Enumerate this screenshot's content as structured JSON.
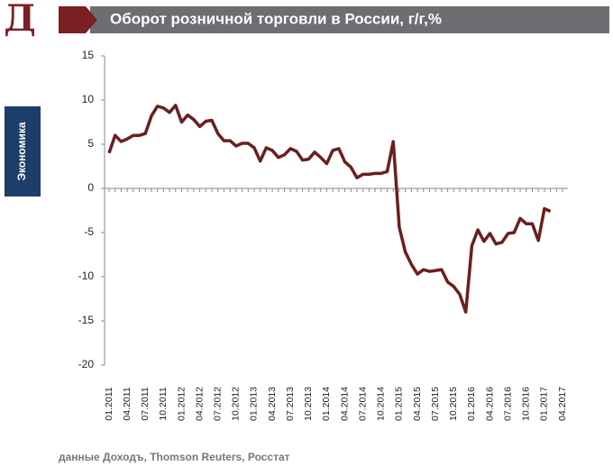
{
  "chart_data": {
    "type": "line",
    "logo": "Д",
    "title": "Оборот розничной торговли в России, г/г,%",
    "side_label": "Экономика",
    "source": "данные Доходъ, Thomson Reuters, Росстат",
    "categories": [
      "01.2011",
      null,
      null,
      "04.2011",
      null,
      null,
      "07.2011",
      null,
      null,
      "10.2011",
      null,
      null,
      "01.2012",
      null,
      null,
      "04.2012",
      null,
      null,
      "07.2012",
      null,
      null,
      "10.2012",
      null,
      null,
      "01.2013",
      null,
      null,
      "04.2013",
      null,
      null,
      "07.2013",
      null,
      null,
      "10.2013",
      null,
      null,
      "01.2014",
      null,
      null,
      "04.2014",
      null,
      null,
      "07.2014",
      null,
      null,
      "10.2014",
      null,
      null,
      "01.2015",
      null,
      null,
      "04.2015",
      null,
      null,
      "07.2015",
      null,
      null,
      "10.2015",
      null,
      null,
      "01.2016",
      null,
      null,
      "04.2016",
      null,
      null,
      "07.2016",
      null,
      null,
      "10.2016",
      null,
      null,
      "01.2017",
      null,
      null,
      "04.2017"
    ],
    "series": [
      {
        "name": "Оборот розничной торговли",
        "color": "#6b1f1f",
        "values": [
          4.0,
          6.0,
          5.3,
          5.6,
          6.0,
          6.0,
          6.2,
          8.2,
          9.3,
          9.1,
          8.6,
          9.4,
          7.5,
          8.3,
          7.8,
          7.0,
          7.6,
          7.7,
          6.2,
          5.4,
          5.4,
          4.8,
          5.1,
          5.1,
          4.6,
          3.1,
          4.6,
          4.3,
          3.5,
          3.8,
          4.5,
          4.2,
          3.2,
          3.3,
          4.1,
          3.5,
          2.8,
          4.3,
          4.5,
          3.0,
          2.4,
          1.2,
          1.6,
          1.6,
          1.7,
          1.7,
          1.9,
          5.3,
          -4.4,
          -7.2,
          -8.6,
          -9.7,
          -9.2,
          -9.4,
          -9.3,
          -9.2,
          -10.6,
          -11.1,
          -12.0,
          -14.0,
          -6.5,
          -4.7,
          -6.0,
          -5.1,
          -6.3,
          -6.1,
          -5.1,
          -5.0,
          -3.4,
          -4.0,
          -4.0,
          -5.9,
          -2.3,
          -2.6,
          null,
          null
        ]
      }
    ],
    "ylim": [
      -20,
      15
    ],
    "yticks": [
      15,
      10,
      5,
      0,
      -5,
      -10,
      -15,
      -20
    ],
    "grid": false
  }
}
